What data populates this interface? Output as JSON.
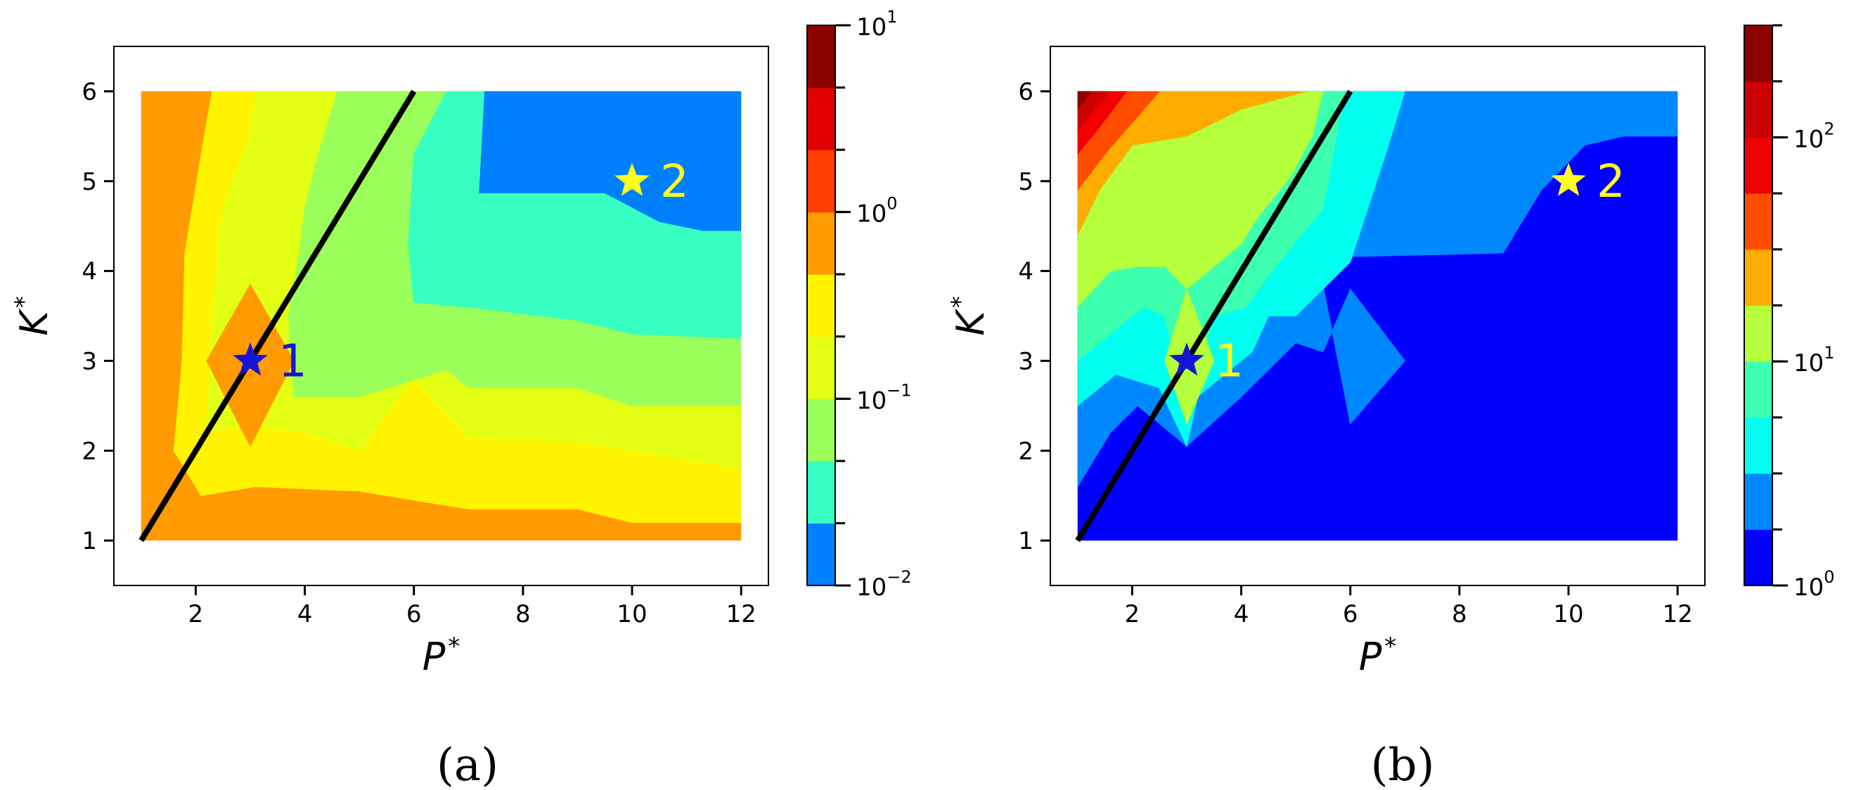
{
  "chart_data": [
    {
      "type": "contourf",
      "panel_label": "(a)",
      "xlabel": "P",
      "xlabel_sup": "*",
      "ylabel": "K",
      "ylabel_sup": "*",
      "xlim": [
        0.5,
        12.5
      ],
      "ylim": [
        0.5,
        6.5
      ],
      "x_ticks": [
        2,
        4,
        6,
        8,
        10,
        12
      ],
      "y_ticks": [
        1,
        2,
        3,
        4,
        5,
        6
      ],
      "grid": [
        1,
        12,
        1,
        6
      ],
      "colorbar": {
        "scale": "log",
        "min_exp": -2,
        "max_exp": 1,
        "levels_per_decade": 3,
        "tick_labels": [
          {
            "base": "10",
            "exp": "−2",
            "value_exp": -2
          },
          {
            "base": "10",
            "exp": "−1",
            "value_exp": -1
          },
          {
            "base": "10",
            "exp": "0",
            "value_exp": 0
          },
          {
            "base": "10",
            "exp": "1",
            "value_exp": 1
          }
        ],
        "colors": [
          "#0080ff",
          "#36ffc1",
          "#9bff5b",
          "#e2ff14",
          "#fff300",
          "#ff9a00",
          "#ff3e00",
          "#e00000",
          "#8b0000"
        ]
      },
      "regions": [
        {
          "level": 5,
          "polygon": [
            [
              1,
              1
            ],
            [
              12,
              1
            ],
            [
              12,
              6
            ],
            [
              1,
              6
            ]
          ]
        },
        {
          "level": 4,
          "polygon": [
            [
              1.6,
              2.0
            ],
            [
              2.1,
              1.5
            ],
            [
              3.1,
              1.6
            ],
            [
              5,
              1.55
            ],
            [
              7,
              1.35
            ],
            [
              9,
              1.35
            ],
            [
              10,
              1.2
            ],
            [
              12,
              1.2
            ],
            [
              12,
              6
            ],
            [
              2.3,
              6
            ],
            [
              2.1,
              5.3
            ],
            [
              1.8,
              4.2
            ],
            [
              1.75,
              3.0
            ]
          ]
        },
        {
          "level": 3,
          "polygon": [
            [
              2.2,
              2.2
            ],
            [
              2.9,
              2.3
            ],
            [
              4,
              2.2
            ],
            [
              5,
              2.0
            ],
            [
              6,
              2.8
            ],
            [
              7,
              2.15
            ],
            [
              9,
              2.1
            ],
            [
              10,
              2.0
            ],
            [
              12,
              1.8
            ],
            [
              12,
              6
            ],
            [
              3.1,
              6
            ],
            [
              3.0,
              5.5
            ],
            [
              2.5,
              4.7
            ],
            [
              2.3,
              3.5
            ]
          ]
        },
        {
          "level": 2,
          "polygon": [
            [
              3.8,
              2.6
            ],
            [
              5,
              2.6
            ],
            [
              6.6,
              2.9
            ],
            [
              7,
              2.7
            ],
            [
              9,
              2.7
            ],
            [
              10,
              2.5
            ],
            [
              12,
              2.5
            ],
            [
              12,
              6
            ],
            [
              4.6,
              6
            ],
            [
              4.2,
              5.2
            ],
            [
              4.0,
              4.7
            ],
            [
              3.9,
              4.2
            ],
            [
              3.7,
              3.5
            ]
          ]
        },
        {
          "level": 1,
          "polygon": [
            [
              6,
              3.65
            ],
            [
              7,
              3.6
            ],
            [
              9,
              3.45
            ],
            [
              10,
              3.3
            ],
            [
              12,
              3.25
            ],
            [
              12,
              6
            ],
            [
              6.6,
              6
            ],
            [
              6.0,
              5.3
            ],
            [
              5.9,
              4.3
            ]
          ]
        },
        {
          "level": 0,
          "polygon": [
            [
              7.3,
              6
            ],
            [
              7.2,
              4.87
            ],
            [
              9.5,
              4.87
            ],
            [
              10.5,
              4.55
            ],
            [
              11.3,
              4.45
            ],
            [
              12,
              4.45
            ],
            [
              12,
              6
            ]
          ]
        },
        {
          "level": 5,
          "polygon": [
            [
              3,
              3.85
            ],
            [
              3.8,
              3.0
            ],
            [
              3,
              2.05
            ],
            [
              2.2,
              3.0
            ]
          ]
        }
      ],
      "line": {
        "from": [
          1,
          1
        ],
        "to": [
          6,
          6
        ],
        "color": "#000000"
      },
      "markers": [
        {
          "x": 3,
          "y": 3,
          "label": "1",
          "color": "#1515d8"
        },
        {
          "x": 10,
          "y": 5,
          "label": "2",
          "color": "#ffff1e"
        }
      ]
    },
    {
      "type": "contourf",
      "panel_label": "(b)",
      "xlabel": "P",
      "xlabel_sup": "*",
      "ylabel": "K",
      "ylabel_sup": "*",
      "xlim": [
        0.5,
        12.5
      ],
      "ylim": [
        0.5,
        6.5
      ],
      "x_ticks": [
        2,
        4,
        6,
        8,
        10,
        12
      ],
      "y_ticks": [
        1,
        2,
        3,
        4,
        5,
        6
      ],
      "grid": [
        1,
        12,
        1,
        6
      ],
      "colorbar": {
        "scale": "log",
        "min_exp": 0,
        "max_exp": 2.5,
        "levels_per_decade": 4,
        "tick_labels": [
          {
            "base": "10",
            "exp": "0",
            "value_exp": 0
          },
          {
            "base": "10",
            "exp": "1",
            "value_exp": 1
          },
          {
            "base": "10",
            "exp": "2",
            "value_exp": 2
          }
        ],
        "colors": [
          "#0000ff",
          "#0088ff",
          "#00ffee",
          "#3cffaf",
          "#b5ff3c",
          "#ffac00",
          "#ff4d00",
          "#f00000",
          "#cc0000",
          "#8b0000"
        ]
      },
      "regions": [
        {
          "level": 0,
          "polygon": [
            [
              1,
              1
            ],
            [
              12,
              1
            ],
            [
              12,
              6
            ],
            [
              1,
              6
            ]
          ]
        },
        {
          "level": 1,
          "polygon": [
            [
              1,
              1.6
            ],
            [
              1.6,
              2.2
            ],
            [
              2.1,
              2.5
            ],
            [
              3.0,
              2.05
            ],
            [
              4.0,
              2.6
            ],
            [
              5.0,
              3.2
            ],
            [
              5.5,
              3.1
            ],
            [
              6.0,
              3.8
            ],
            [
              7.0,
              3.0
            ],
            [
              6.0,
              2.3
            ],
            [
              5.4,
              4.15
            ],
            [
              8.8,
              4.2
            ],
            [
              9.5,
              4.9
            ],
            [
              10.3,
              5.4
            ],
            [
              11,
              5.5
            ],
            [
              12,
              5.5
            ],
            [
              12,
              6
            ],
            [
              1,
              6
            ]
          ]
        },
        {
          "level": 2,
          "polygon": [
            [
              1,
              2.5
            ],
            [
              1.7,
              2.85
            ],
            [
              2.5,
              2.7
            ],
            [
              3,
              2.05
            ],
            [
              3.2,
              2.6
            ],
            [
              4.2,
              3.1
            ],
            [
              4.5,
              3.5
            ],
            [
              5,
              3.5
            ],
            [
              6,
              4.1
            ],
            [
              6.7,
              5.4
            ],
            [
              7.0,
              6
            ],
            [
              1,
              6
            ]
          ]
        },
        {
          "level": 3,
          "polygon": [
            [
              1,
              3.0
            ],
            [
              1.6,
              3.3
            ],
            [
              2.2,
              3.6
            ],
            [
              2.6,
              3.5
            ],
            [
              3.0,
              2.3
            ],
            [
              3.5,
              3.5
            ],
            [
              4.1,
              3.6
            ],
            [
              4.5,
              3.95
            ],
            [
              5.5,
              4.7
            ],
            [
              5.9,
              6
            ],
            [
              1,
              6
            ]
          ]
        },
        {
          "level": 4,
          "polygon": [
            [
              1,
              3.6
            ],
            [
              1.6,
              4.0
            ],
            [
              2.1,
              4.05
            ],
            [
              2.6,
              4.05
            ],
            [
              3.0,
              3.8
            ],
            [
              3.5,
              4.05
            ],
            [
              4.0,
              4.3
            ],
            [
              4.3,
              4.6
            ],
            [
              4.9,
              5.05
            ],
            [
              5.3,
              5.5
            ],
            [
              5.5,
              6
            ],
            [
              1,
              6
            ]
          ]
        },
        {
          "level": 4,
          "polygon": [
            [
              3.0,
              3.8
            ],
            [
              3.5,
              3.0
            ],
            [
              3.0,
              2.3
            ],
            [
              2.6,
              3.0
            ]
          ]
        },
        {
          "level": 5,
          "polygon": [
            [
              1,
              4.4
            ],
            [
              1.4,
              4.9
            ],
            [
              2.0,
              5.4
            ],
            [
              3.0,
              5.5
            ],
            [
              4.0,
              5.8
            ],
            [
              5.2,
              6
            ],
            [
              1,
              6
            ]
          ]
        },
        {
          "level": 6,
          "polygon": [
            [
              1,
              4.9
            ],
            [
              1.5,
              5.3
            ],
            [
              2.5,
              6
            ],
            [
              1,
              6
            ]
          ]
        },
        {
          "level": 7,
          "polygon": [
            [
              1,
              5.3
            ],
            [
              1.4,
              5.6
            ],
            [
              1.9,
              6
            ],
            [
              1,
              6
            ]
          ]
        },
        {
          "level": 8,
          "polygon": [
            [
              1,
              5.55
            ],
            [
              1.3,
              5.8
            ],
            [
              1.6,
              6
            ],
            [
              1,
              6
            ]
          ]
        },
        {
          "level": 9,
          "polygon": [
            [
              1,
              5.8
            ],
            [
              1.25,
              6
            ],
            [
              1,
              6
            ]
          ]
        }
      ],
      "line": {
        "from": [
          1,
          1
        ],
        "to": [
          6,
          6
        ],
        "color": "#000000"
      },
      "markers": [
        {
          "x": 3,
          "y": 3,
          "label": "1",
          "color": "#1515d8",
          "label_color": "#ffff1e"
        },
        {
          "x": 10,
          "y": 5,
          "label": "2",
          "color": "#ffff1e"
        }
      ]
    }
  ]
}
